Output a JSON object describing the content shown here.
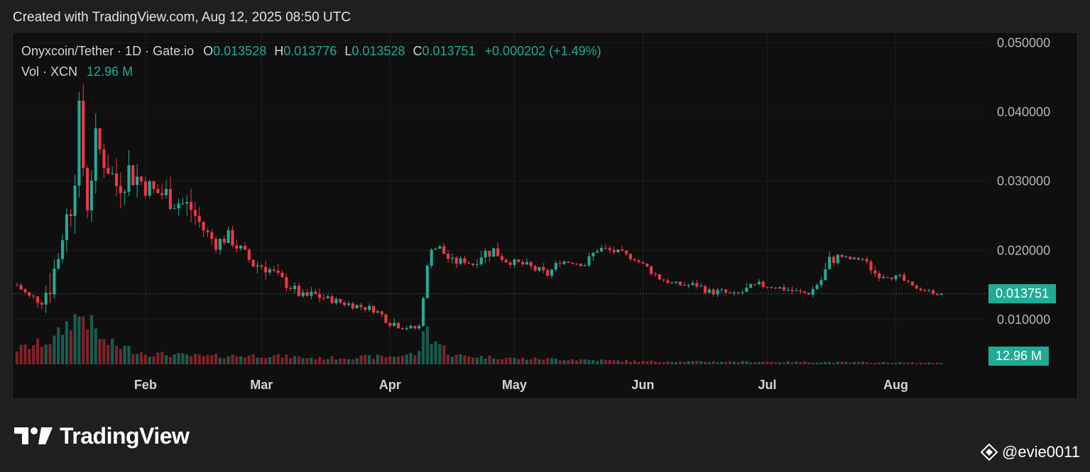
{
  "header": {
    "created_text": "Created with TradingView.com, Aug 12, 2025 08:50 UTC"
  },
  "legend": {
    "symbol": "Onyxcoin/Tether · 1D · Gate.io",
    "open_label": "O",
    "open": "0.013528",
    "high_label": "H",
    "high": "0.013776",
    "low_label": "L",
    "low": "0.013528",
    "close_label": "C",
    "close": "0.013751",
    "change": "+0.000202 (+1.49%)",
    "vol_label": "Vol · XCN",
    "vol_value": "12.96 M"
  },
  "badges": {
    "price": "0.013751",
    "volume": "12.96 M"
  },
  "footer": {
    "brand": "TradingView",
    "author": "@evie0011"
  },
  "colors": {
    "up": "#22ab94",
    "down": "#f23645",
    "background": "#0f0f0f",
    "grid": "#1e1e1e",
    "last_price_line": "#22ab94"
  },
  "chart_data": {
    "type": "candlestick",
    "title": "Onyxcoin/Tether · 1D · Gate.io",
    "y_ticks": [
      "0.050000",
      "0.040000",
      "0.030000",
      "0.020000",
      "0.010000"
    ],
    "y_tick_values": [
      0.05,
      0.04,
      0.03,
      0.02,
      0.01
    ],
    "ylim": [
      0.00355,
      0.05146
    ],
    "x_ticks": [
      "Feb",
      "Mar",
      "Apr",
      "May",
      "Jun",
      "Jul",
      "Aug"
    ],
    "x_tick_dates": [
      "2025-02-01",
      "2025-03-01",
      "2025-04-01",
      "2025-05-01",
      "2025-06-01",
      "2025-07-01",
      "2025-08-01"
    ],
    "xlim": [
      "2024-12-31",
      "2025-08-23"
    ],
    "last_price": 0.013751,
    "grid": true,
    "price_anchors": [
      [
        "2025-01-01",
        0.0145,
        0.0155
      ],
      [
        "2025-01-04",
        0.0125,
        0.014
      ],
      [
        "2025-01-07",
        0.012,
        0.0135
      ],
      [
        "2025-01-10",
        0.013,
        0.021
      ],
      [
        "2025-01-12",
        0.021,
        0.023
      ],
      [
        "2025-01-14",
        0.024,
        0.031
      ],
      [
        "2025-01-16",
        0.034,
        0.042
      ],
      [
        "2025-01-18",
        0.025,
        0.028
      ],
      [
        "2025-01-20",
        0.033,
        0.038
      ],
      [
        "2025-01-23",
        0.03,
        0.034
      ],
      [
        "2025-01-25",
        0.027,
        0.032
      ],
      [
        "2025-01-28",
        0.029,
        0.034
      ],
      [
        "2025-01-31",
        0.028,
        0.032
      ],
      [
        "2025-02-03",
        0.027,
        0.03
      ],
      [
        "2025-02-06",
        0.026,
        0.03
      ],
      [
        "2025-02-09",
        0.025,
        0.029
      ],
      [
        "2025-02-12",
        0.024,
        0.028
      ],
      [
        "2025-02-15",
        0.022,
        0.024
      ],
      [
        "2025-02-18",
        0.02,
        0.022
      ],
      [
        "2025-02-21",
        0.021,
        0.023
      ],
      [
        "2025-02-24",
        0.019,
        0.021
      ],
      [
        "2025-02-27",
        0.017,
        0.019
      ],
      [
        "2025-03-02",
        0.0165,
        0.019
      ],
      [
        "2025-03-05",
        0.015,
        0.017
      ],
      [
        "2025-03-08",
        0.014,
        0.0155
      ],
      [
        "2025-03-11",
        0.0125,
        0.014
      ],
      [
        "2025-03-14",
        0.0125,
        0.0145
      ],
      [
        "2025-03-17",
        0.0125,
        0.0135
      ],
      [
        "2025-03-20",
        0.012,
        0.013
      ],
      [
        "2025-03-24",
        0.0115,
        0.0125
      ],
      [
        "2025-03-28",
        0.011,
        0.012
      ],
      [
        "2025-04-01",
        0.009,
        0.0105
      ],
      [
        "2025-04-04",
        0.0085,
        0.0095
      ],
      [
        "2025-04-07",
        0.0085,
        0.009
      ],
      [
        "2025-04-08",
        0.0085,
        0.0095
      ],
      [
        "2025-04-09",
        0.013,
        0.014
      ],
      [
        "2025-04-10",
        0.017,
        0.018
      ],
      [
        "2025-04-11",
        0.02,
        0.021
      ],
      [
        "2025-04-13",
        0.0195,
        0.021
      ],
      [
        "2025-04-16",
        0.0175,
        0.019
      ],
      [
        "2025-04-19",
        0.018,
        0.019
      ],
      [
        "2025-04-21",
        0.0175,
        0.0185
      ],
      [
        "2025-04-23",
        0.0185,
        0.0205
      ],
      [
        "2025-04-26",
        0.019,
        0.021
      ],
      [
        "2025-04-29",
        0.018,
        0.019
      ],
      [
        "2025-05-03",
        0.0175,
        0.0185
      ],
      [
        "2025-05-06",
        0.0165,
        0.018
      ],
      [
        "2025-05-09",
        0.016,
        0.017
      ],
      [
        "2025-05-12",
        0.018,
        0.019
      ],
      [
        "2025-05-15",
        0.018,
        0.0185
      ],
      [
        "2025-05-18",
        0.0175,
        0.0185
      ],
      [
        "2025-05-21",
        0.0195,
        0.021
      ],
      [
        "2025-05-24",
        0.0195,
        0.0205
      ],
      [
        "2025-05-27",
        0.019,
        0.02
      ],
      [
        "2025-05-30",
        0.0185,
        0.019
      ],
      [
        "2025-06-02",
        0.017,
        0.018
      ],
      [
        "2025-06-05",
        0.0155,
        0.0165
      ],
      [
        "2025-06-08",
        0.015,
        0.0155
      ],
      [
        "2025-06-11",
        0.0145,
        0.0155
      ],
      [
        "2025-06-14",
        0.0145,
        0.0155
      ],
      [
        "2025-06-17",
        0.0135,
        0.0145
      ],
      [
        "2025-06-20",
        0.0135,
        0.0145
      ],
      [
        "2025-06-23",
        0.013,
        0.014
      ],
      [
        "2025-06-26",
        0.0135,
        0.015
      ],
      [
        "2025-06-29",
        0.0145,
        0.0155
      ],
      [
        "2025-07-02",
        0.0145,
        0.015
      ],
      [
        "2025-07-05",
        0.014,
        0.015
      ],
      [
        "2025-07-08",
        0.0135,
        0.0145
      ],
      [
        "2025-07-11",
        0.0135,
        0.014
      ],
      [
        "2025-07-14",
        0.015,
        0.0165
      ],
      [
        "2025-07-16",
        0.017,
        0.0195
      ],
      [
        "2025-07-18",
        0.019,
        0.0195
      ],
      [
        "2025-07-21",
        0.0185,
        0.019
      ],
      [
        "2025-07-24",
        0.0185,
        0.019
      ],
      [
        "2025-07-27",
        0.016,
        0.0175
      ],
      [
        "2025-07-30",
        0.016,
        0.0165
      ],
      [
        "2025-08-02",
        0.0155,
        0.0165
      ],
      [
        "2025-08-05",
        0.0145,
        0.015
      ],
      [
        "2025-08-08",
        0.014,
        0.0145
      ],
      [
        "2025-08-11",
        0.0135,
        0.014
      ],
      [
        "2025-08-12",
        0.013528,
        0.013751
      ]
    ],
    "volume_profile": [
      [
        "2025-01-01",
        0.3
      ],
      [
        "2025-01-10",
        0.5
      ],
      [
        "2025-01-14",
        0.9
      ],
      [
        "2025-01-17",
        1.0
      ],
      [
        "2025-01-22",
        0.45
      ],
      [
        "2025-02-01",
        0.22
      ],
      [
        "2025-02-15",
        0.16
      ],
      [
        "2025-03-01",
        0.18
      ],
      [
        "2025-03-15",
        0.12
      ],
      [
        "2025-04-01",
        0.16
      ],
      [
        "2025-04-08",
        0.22
      ],
      [
        "2025-04-09",
        0.8
      ],
      [
        "2025-04-11",
        0.55
      ],
      [
        "2025-04-16",
        0.18
      ],
      [
        "2025-05-01",
        0.12
      ],
      [
        "2025-05-15",
        0.1
      ],
      [
        "2025-06-01",
        0.06
      ],
      [
        "2025-07-01",
        0.05
      ],
      [
        "2025-08-12",
        0.03
      ]
    ]
  }
}
